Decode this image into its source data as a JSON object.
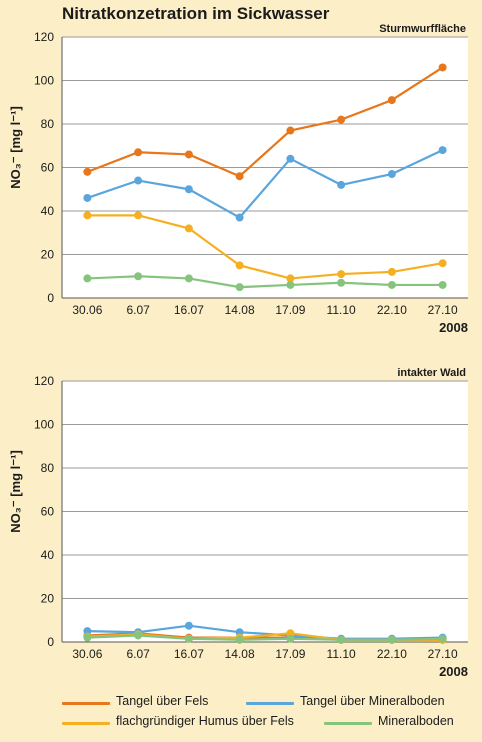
{
  "title": "Nitratkonzetration im Sickwasser",
  "colors": {
    "plot_bg": "#ffffff",
    "grid": "#9a9a9a",
    "series": [
      "#e8761a",
      "#5aa6dc",
      "#f5b022",
      "#86c47e"
    ]
  },
  "legend": [
    {
      "label": "Tangel über Fels"
    },
    {
      "label": "Tangel über Mineralboden"
    },
    {
      "label": "flachgründiger Humus über Fels"
    },
    {
      "label": "Mineralboden"
    }
  ],
  "chart_data": [
    {
      "type": "line",
      "panel_label": "Sturmwurffläche",
      "ylabel": "NO₃⁻ [mg l⁻¹]",
      "year_label": "2008",
      "categories": [
        "30.06",
        "6.07",
        "16.07",
        "14.08",
        "17.09",
        "11.10",
        "22.10",
        "27.10"
      ],
      "ylim": [
        0,
        120
      ],
      "yticks": [
        0,
        20,
        40,
        60,
        80,
        100,
        120
      ],
      "grid": true,
      "series": [
        {
          "name": "Tangel über Fels",
          "values": [
            58,
            67,
            66,
            56,
            77,
            82,
            91,
            106
          ]
        },
        {
          "name": "Tangel über Mineralboden",
          "values": [
            46,
            54,
            50,
            37,
            64,
            52,
            57,
            68
          ]
        },
        {
          "name": "flachgründiger Humus über Fels",
          "values": [
            38,
            38,
            32,
            15,
            9,
            11,
            12,
            16
          ]
        },
        {
          "name": "Mineralboden",
          "values": [
            9,
            10,
            9,
            5,
            6,
            7,
            6,
            6
          ]
        }
      ]
    },
    {
      "type": "line",
      "panel_label": "intakter Wald",
      "ylabel": "NO₃⁻ [mg l⁻¹]",
      "year_label": "2008",
      "categories": [
        "30.06",
        "6.07",
        "16.07",
        "14.08",
        "17.09",
        "11.10",
        "22.10",
        "27.10"
      ],
      "ylim": [
        0,
        120
      ],
      "yticks": [
        0,
        20,
        40,
        60,
        80,
        100,
        120
      ],
      "grid": true,
      "series": [
        {
          "name": "Tangel über Fels",
          "values": [
            3,
            4,
            2,
            2,
            2,
            1,
            1,
            1
          ]
        },
        {
          "name": "Tangel über Mineralboden",
          "values": [
            5,
            4.5,
            7.5,
            4.5,
            3,
            1.5,
            1.5,
            2
          ]
        },
        {
          "name": "flachgründiger Humus über Fels",
          "values": [
            2.5,
            3.5,
            1.5,
            2,
            4,
            1,
            1,
            1
          ]
        },
        {
          "name": "Mineralboden",
          "values": [
            2,
            3,
            1.5,
            1,
            1.5,
            1,
            1,
            1.5
          ]
        }
      ]
    }
  ]
}
